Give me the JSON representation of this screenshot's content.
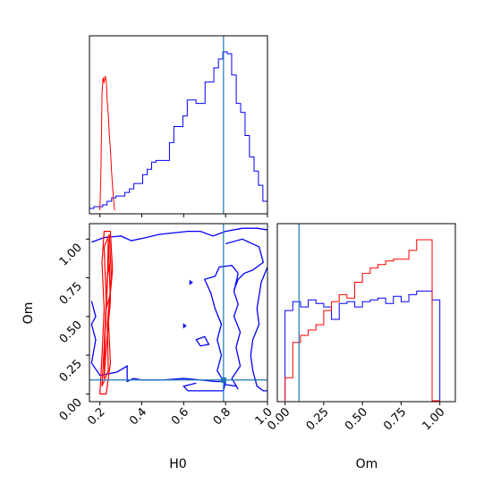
{
  "chart_data": {
    "type": "corner",
    "parameters": [
      "H0",
      "Om"
    ],
    "truth": {
      "H0": 0.79,
      "Om": 0.09
    },
    "colors": {
      "series_a": "#0000ff",
      "series_b": "#ff0000",
      "truth": "#1f77b4"
    },
    "panels": {
      "hist_H0": {
        "type": "histogram",
        "xlim": [
          0.15,
          1.0
        ],
        "bins_blue": {
          "edges": [
            0.15,
            0.171,
            0.192,
            0.213,
            0.234,
            0.256,
            0.277,
            0.298,
            0.319,
            0.341,
            0.362,
            0.383,
            0.404,
            0.426,
            0.447,
            0.468,
            0.489,
            0.511,
            0.532,
            0.553,
            0.574,
            0.596,
            0.617,
            0.638,
            0.659,
            0.681,
            0.702,
            0.723,
            0.744,
            0.766,
            0.787,
            0.808,
            0.829,
            0.851,
            0.872,
            0.893,
            0.914,
            0.936,
            0.957,
            0.978,
            1.0
          ],
          "counts": [
            0.01,
            0.02,
            0.02,
            0.03,
            0.05,
            0.07,
            0.08,
            0.08,
            0.1,
            0.12,
            0.15,
            0.15,
            0.2,
            0.23,
            0.27,
            0.28,
            0.28,
            0.28,
            0.38,
            0.47,
            0.47,
            0.53,
            0.62,
            0.62,
            0.6,
            0.6,
            0.72,
            0.72,
            0.8,
            0.85,
            0.89,
            0.88,
            0.76,
            0.6,
            0.55,
            0.42,
            0.3,
            0.22,
            0.14,
            0.05
          ]
        },
        "red_peak": {
          "x": [
            0.2,
            0.205,
            0.21,
            0.215,
            0.22,
            0.225,
            0.23,
            0.235,
            0.24,
            0.245,
            0.25,
            0.255,
            0.26,
            0.265,
            0.27
          ],
          "y": [
            0.0,
            0.3,
            0.85,
            0.97,
            0.93,
            0.98,
            0.95,
            0.8,
            0.7,
            0.55,
            0.45,
            0.3,
            0.18,
            0.08,
            0.0
          ]
        }
      },
      "contour_H0_Om": {
        "type": "contour",
        "xlim": [
          0.15,
          1.0
        ],
        "ylim": [
          -0.05,
          1.1
        ],
        "xticks": [
          "0.2",
          "0.4",
          "0.6",
          "0.8",
          "1.0"
        ],
        "yticks": [
          "0.00",
          "0.25",
          "0.50",
          "0.75",
          "1.00"
        ]
      },
      "hist_Om": {
        "type": "histogram",
        "xlim": [
          -0.05,
          1.1
        ],
        "xticks": [
          "0.00",
          "0.25",
          "0.50",
          "0.75",
          "1.00"
        ],
        "bins_blue": {
          "edges": [
            0.0,
            0.05,
            0.1,
            0.15,
            0.2,
            0.25,
            0.3,
            0.35,
            0.4,
            0.45,
            0.5,
            0.55,
            0.6,
            0.65,
            0.7,
            0.75,
            0.8,
            0.85,
            0.9,
            0.95,
            1.0
          ],
          "counts": [
            0.51,
            0.56,
            0.53,
            0.57,
            0.55,
            0.53,
            0.46,
            0.55,
            0.56,
            0.53,
            0.56,
            0.57,
            0.58,
            0.55,
            0.59,
            0.56,
            0.6,
            0.62,
            0.62,
            0.57
          ]
        },
        "bins_red": {
          "edges": [
            0.0,
            0.05,
            0.1,
            0.15,
            0.2,
            0.25,
            0.3,
            0.35,
            0.4,
            0.45,
            0.5,
            0.55,
            0.6,
            0.65,
            0.7,
            0.75,
            0.8,
            0.85,
            0.9,
            0.95,
            1.0
          ],
          "counts": [
            0.13,
            0.33,
            0.37,
            0.4,
            0.43,
            0.51,
            0.56,
            0.6,
            0.58,
            0.67,
            0.72,
            0.75,
            0.77,
            0.79,
            0.8,
            0.8,
            0.85,
            0.91,
            0.91,
            0.0
          ]
        }
      }
    },
    "xlabels": {
      "bottom_left": "H0",
      "bottom_right": "Om"
    },
    "ylabel_left": "Om"
  }
}
